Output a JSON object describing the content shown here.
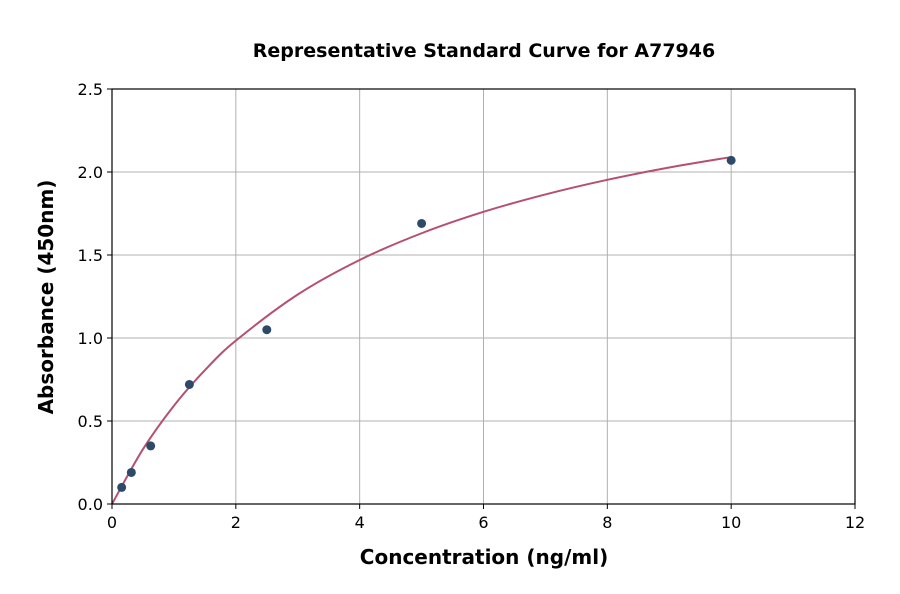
{
  "chart_data": {
    "type": "scatter",
    "title": "Representative Standard Curve for A77946",
    "xlabel": "Concentration (ng/ml)",
    "ylabel": "Absorbance (450nm)",
    "xlim": [
      0,
      12
    ],
    "ylim": [
      0,
      2.5
    ],
    "xticks": [
      "0",
      "2",
      "4",
      "6",
      "8",
      "10",
      "12"
    ],
    "yticks": [
      "0.0",
      "0.5",
      "1.0",
      "1.5",
      "2.0",
      "2.5"
    ],
    "grid": true,
    "points": {
      "x": [
        0.156,
        0.3125,
        0.625,
        1.25,
        2.5,
        5,
        10
      ],
      "y": [
        0.1,
        0.19,
        0.35,
        0.72,
        1.05,
        1.69,
        2.07
      ]
    },
    "fit_curve": {
      "x": [
        0,
        0.5,
        1,
        1.5,
        2,
        3,
        4,
        5,
        6,
        7,
        8,
        9,
        10
      ],
      "y": [
        0,
        0.33,
        0.592,
        0.806,
        0.984,
        1.262,
        1.47,
        1.631,
        1.76,
        1.865,
        1.953,
        2.027,
        2.09
      ]
    },
    "colors": {
      "points": "#2e4a6b",
      "curve": "#b5506f",
      "grid": "#b0b0b0"
    }
  }
}
